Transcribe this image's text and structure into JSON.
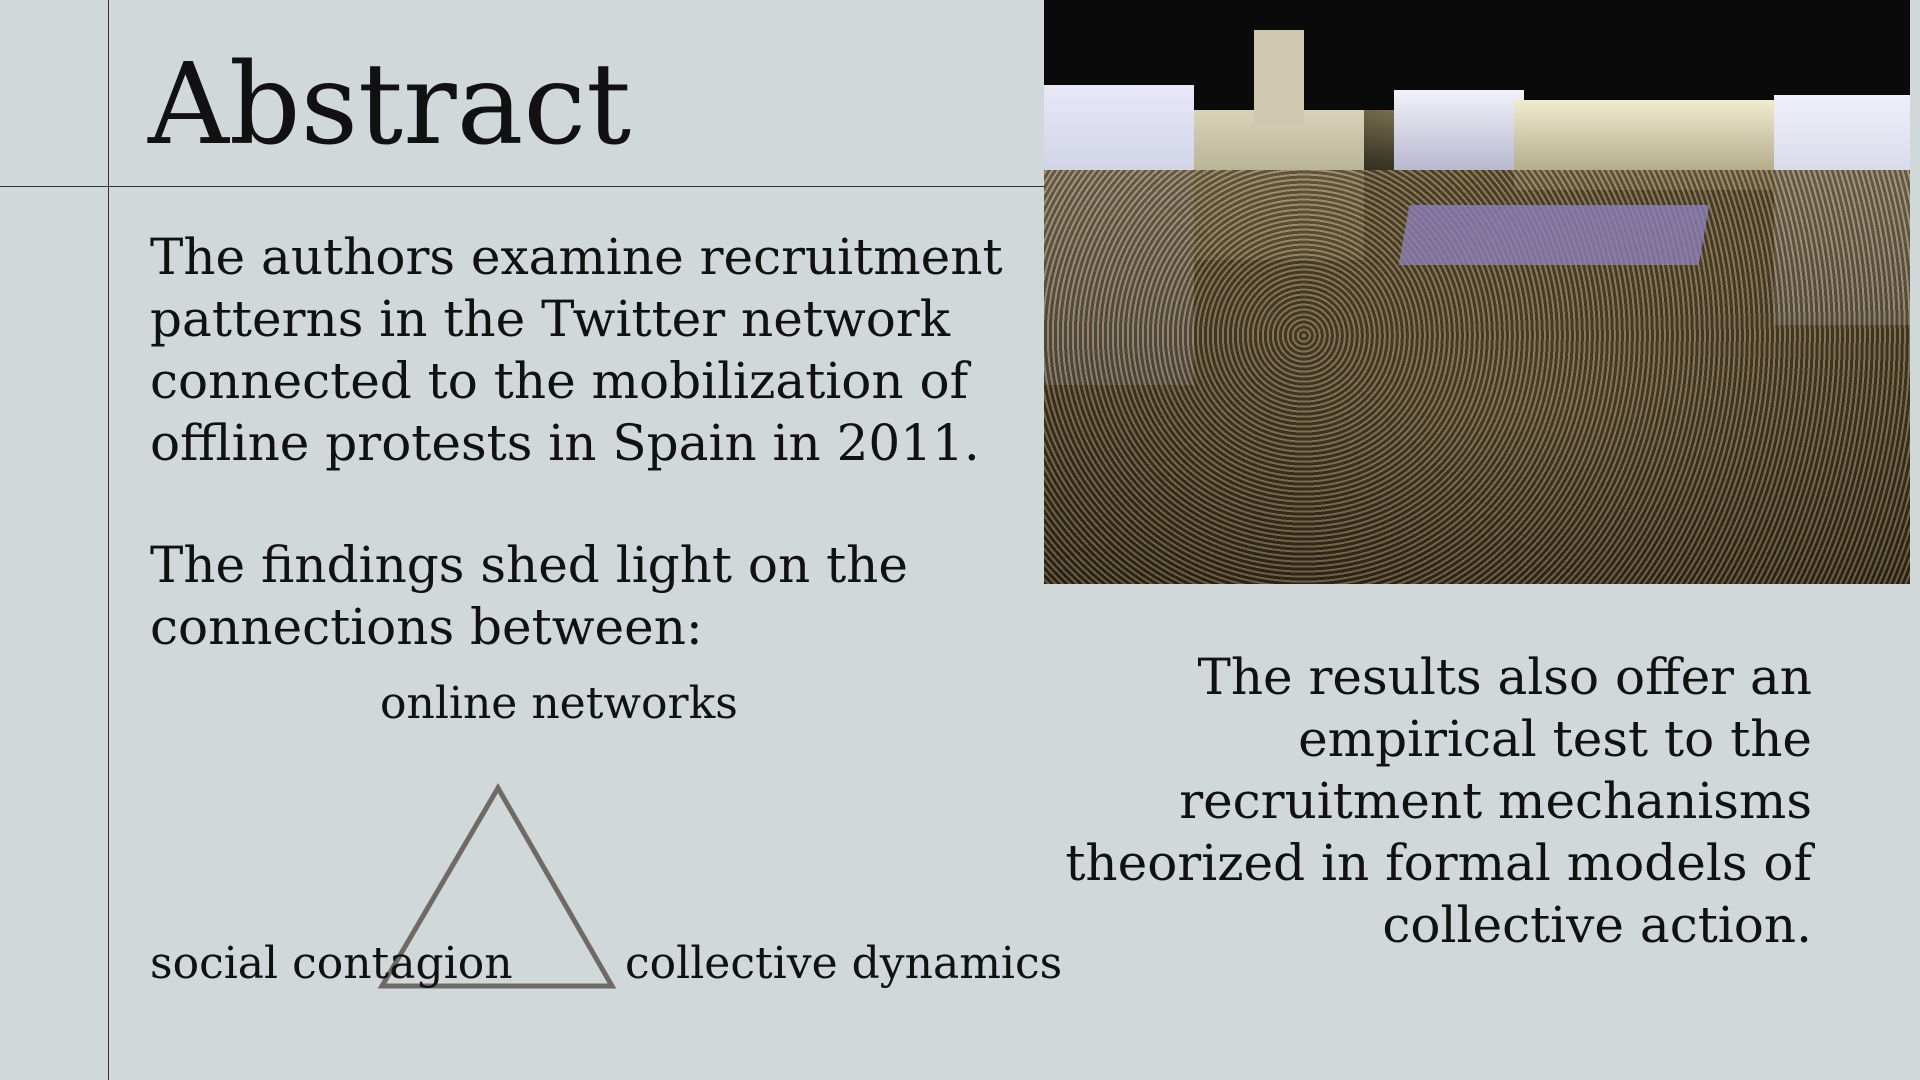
{
  "title": "Abstract",
  "paragraph1": "The authors examine recruitment patterns in the Twitter network connected to the mobilization of offline protests in Spain in 2011.",
  "paragraph2": "The findings shed light on the connections between:",
  "diagram": {
    "top_label": "online networks",
    "left_label": "social contagion",
    "right_label": "collective dynamics"
  },
  "paragraph3": "The results also offer an empirical test to the recruitment mechanisms theorized in formal models of collective action.",
  "colors": {
    "background": "#d0d8da",
    "text": "#111111",
    "triangle_stroke": "#6f6a65"
  }
}
